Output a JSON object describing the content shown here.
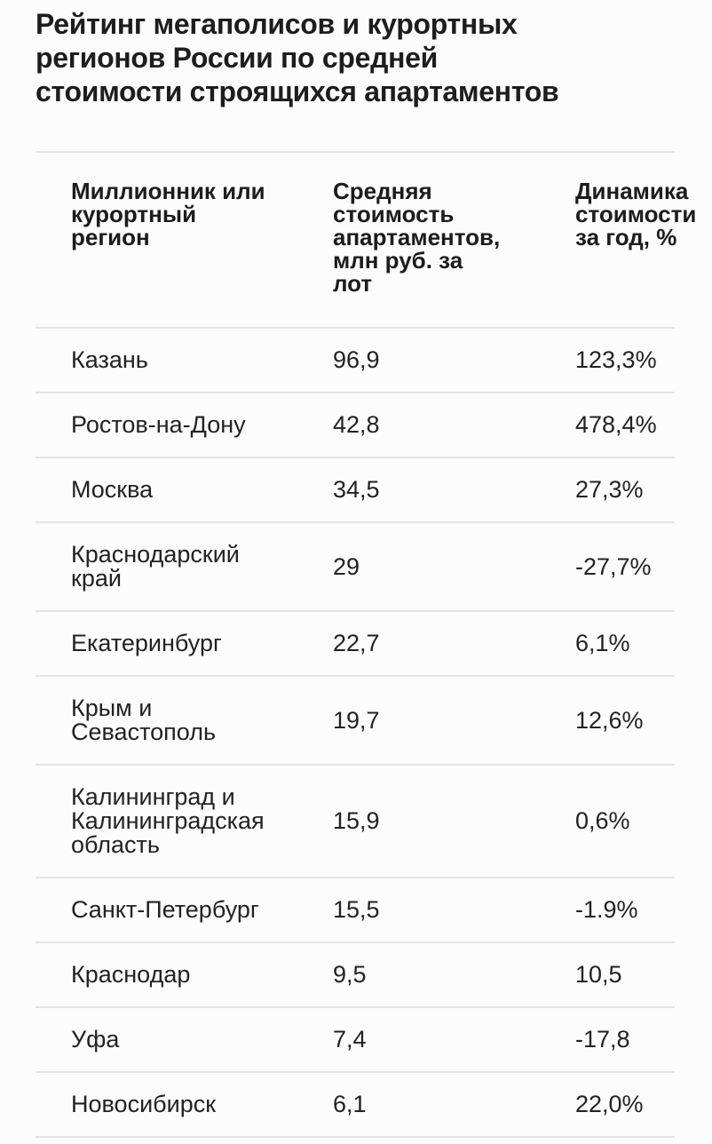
{
  "title": {
    "text": "Рейтинг мегаполисов и курортных регионов России по средней стоимости строящихся апартаментов",
    "lines": [
      "Рейтинг мегаполисов и курортных",
      "регионов России по средней",
      "стоимости строящихся апартаментов"
    ]
  },
  "table": {
    "columns": [
      {
        "label": "Миллионник или курортный регион",
        "lines": [
          "Миллионник или",
          "курортный",
          "регион"
        ]
      },
      {
        "label": "Средняя стоимость апартаментов, млн руб. за лот",
        "lines": [
          "Средняя",
          "стоимость",
          "апартаментов,",
          "млн руб. за",
          "лот"
        ]
      },
      {
        "label": "Динамика стоимости за год, %",
        "lines": [
          "Динамика",
          "стоимости",
          "за год, %"
        ]
      }
    ],
    "rows": [
      {
        "region": "Казань",
        "price": "96,9",
        "change": "123,3%"
      },
      {
        "region": "Ростов-на-Дону",
        "price": "42,8",
        "change": "478,4%"
      },
      {
        "region": "Москва",
        "price": "34,5",
        "change": "27,3%"
      },
      {
        "region": "Краснодарский край",
        "price": "29",
        "change": "-27,7%"
      },
      {
        "region": "Екатеринбург",
        "price": "22,7",
        "change": "6,1%"
      },
      {
        "region": "Крым и Севастополь",
        "price": "19,7",
        "change": "12,6%"
      },
      {
        "region": "Калининград и Калининградская область",
        "price": "15,9",
        "change": "0,6%"
      },
      {
        "region": "Санкт-Петербург",
        "price": "15,5",
        "change": "-1.9%"
      },
      {
        "region": "Краснодар",
        "price": "9,5",
        "change": "10,5"
      },
      {
        "region": "Уфа",
        "price": "7,4",
        "change": "-17,8"
      },
      {
        "region": "Новосибирск",
        "price": "6,1",
        "change": "22,0%"
      }
    ]
  },
  "colors": {
    "background": "#fcfcfc",
    "title_text": "#1d1d1d",
    "header_text": "#1c1c1c",
    "body_text": "#222222",
    "divider": "#e4e4e4"
  },
  "chart_data": {
    "type": "table",
    "title": "Рейтинг мегаполисов и курортных регионов России по средней стоимости строящихся апартаментов",
    "columns": [
      "Миллионник или курортный регион",
      "Средняя стоимость апартаментов, млн руб. за лот",
      "Динамика стоимости за год, %"
    ],
    "rows": [
      [
        "Казань",
        "96,9",
        "123,3%"
      ],
      [
        "Ростов-на-Дону",
        "42,8",
        "478,4%"
      ],
      [
        "Москва",
        "34,5",
        "27,3%"
      ],
      [
        "Краснодарский край",
        "29",
        "-27,7%"
      ],
      [
        "Екатеринбург",
        "22,7",
        "6,1%"
      ],
      [
        "Крым и Севастополь",
        "19,7",
        "12,6%"
      ],
      [
        "Калининград и Калининградская область",
        "15,9",
        "0,6%"
      ],
      [
        "Санкт-Петербург",
        "15,5",
        "-1.9%"
      ],
      [
        "Краснодар",
        "9,5",
        "10,5"
      ],
      [
        "Уфа",
        "7,4",
        "-17,8"
      ],
      [
        "Новосибирск",
        "6,1",
        "22,0%"
      ]
    ],
    "price_values_mln_rub": [
      96.9,
      42.8,
      34.5,
      29,
      22.7,
      19.7,
      15.9,
      15.5,
      9.5,
      7.4,
      6.1
    ],
    "change_percent_values": [
      123.3,
      478.4,
      27.3,
      -27.7,
      6.1,
      12.6,
      0.6,
      -1.9,
      10.5,
      -17.8,
      22.0
    ]
  }
}
